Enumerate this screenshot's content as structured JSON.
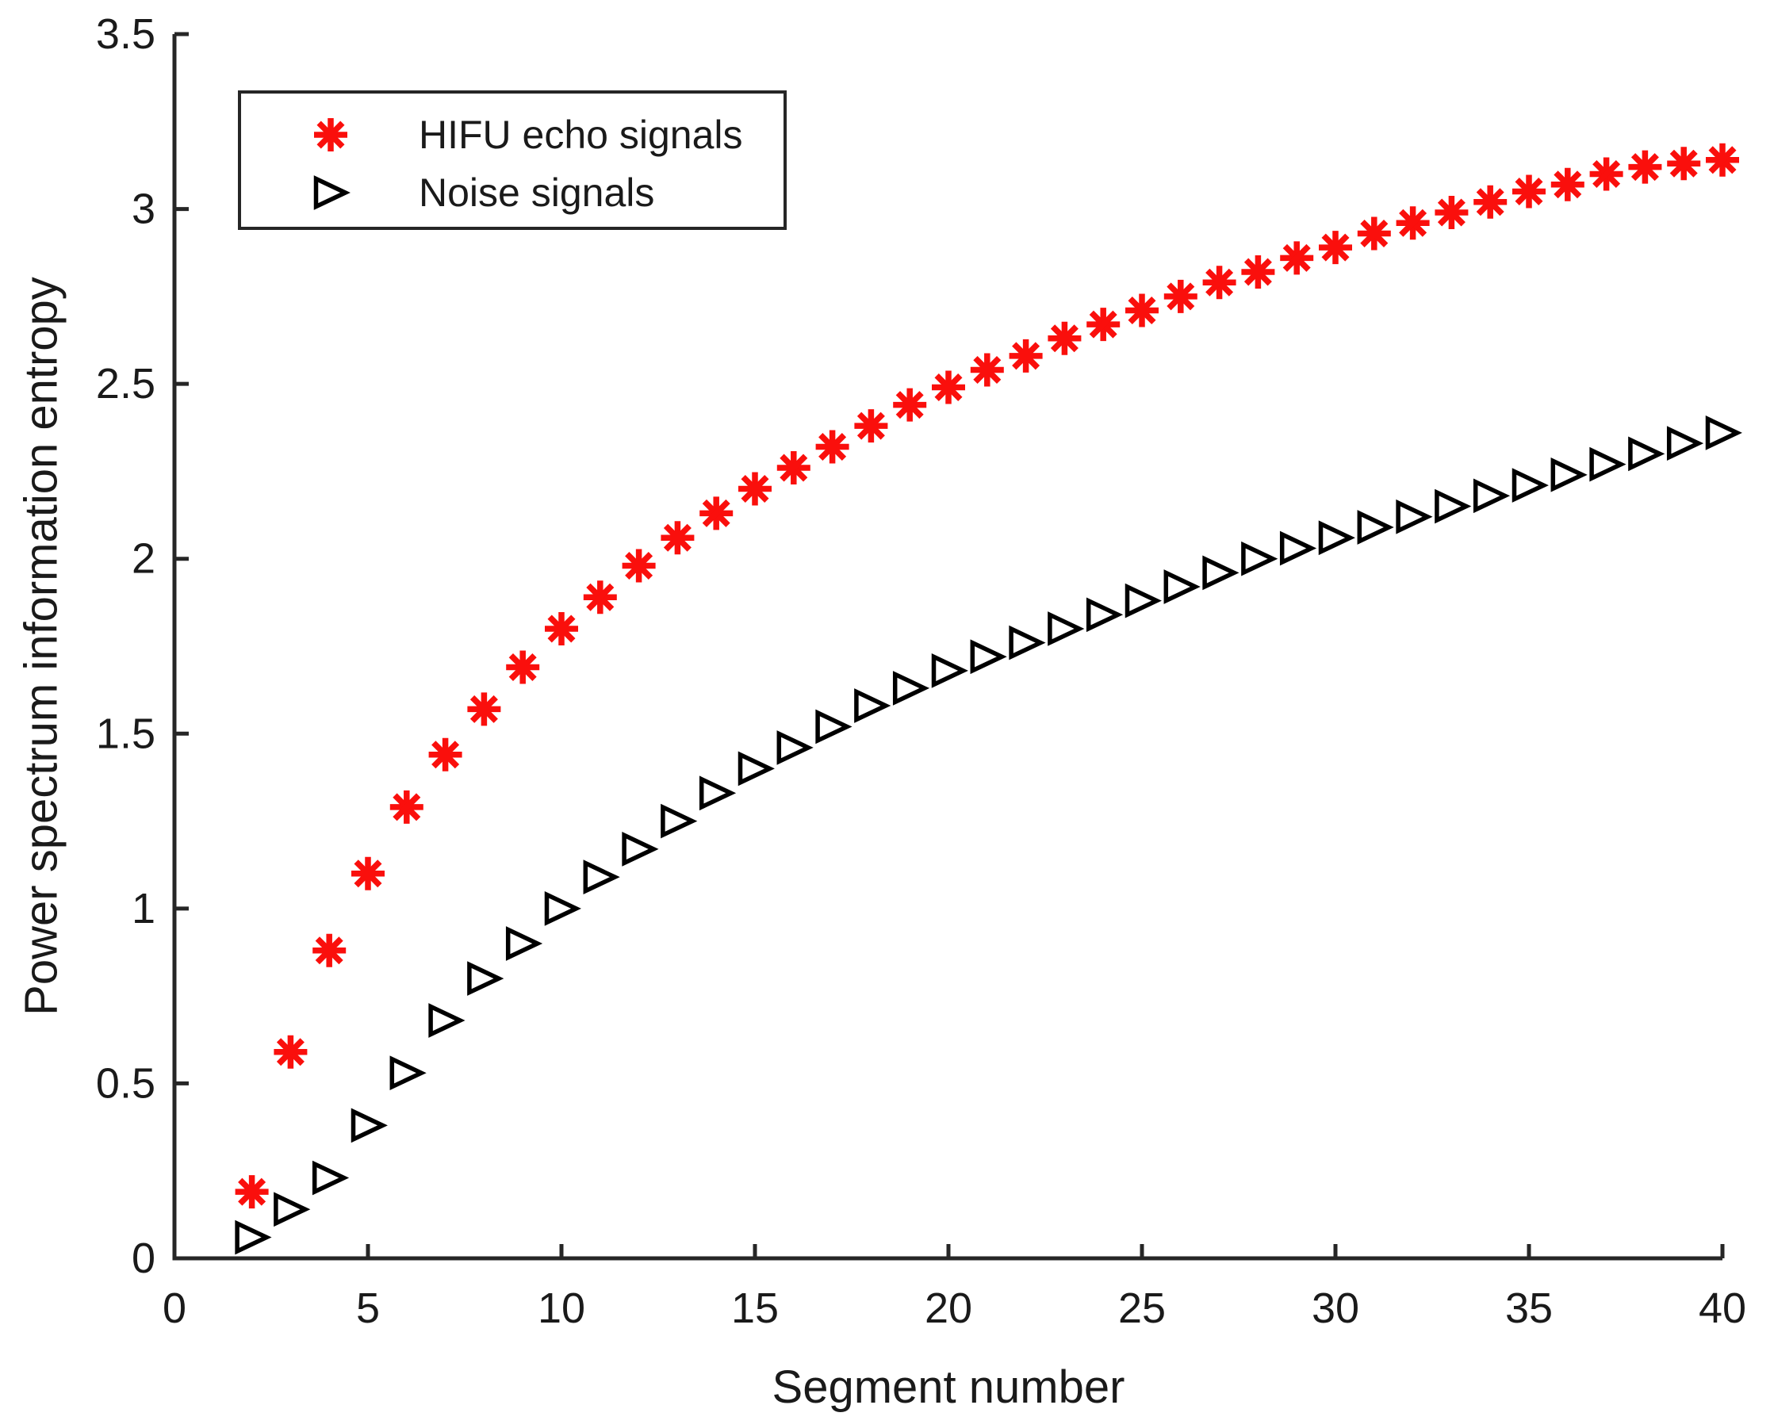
{
  "figure": {
    "background_color": "#ffffff",
    "axis_color": "#262626",
    "text_color": "#1a1a1a"
  },
  "chart_data": {
    "type": "scatter",
    "title": "",
    "xlabel": "Segment number",
    "ylabel": "Power spectrum information entropy",
    "xlim": [
      0,
      40
    ],
    "ylim": [
      0,
      3.5
    ],
    "xtick_values": [
      0,
      5,
      10,
      15,
      20,
      25,
      30,
      35,
      40
    ],
    "xtick_labels": [
      "0",
      "5",
      "10",
      "15",
      "20",
      "25",
      "30",
      "35",
      "40"
    ],
    "ytick_values": [
      0,
      0.5,
      1,
      1.5,
      2,
      2.5,
      3,
      3.5
    ],
    "ytick_labels": [
      "0",
      "0.5",
      "1",
      "1.5",
      "2",
      "2.5",
      "3",
      "3.5"
    ],
    "grid": false,
    "legend_position": "top-left",
    "x": [
      2,
      3,
      4,
      5,
      6,
      7,
      8,
      9,
      10,
      11,
      12,
      13,
      14,
      15,
      16,
      17,
      18,
      19,
      20,
      21,
      22,
      23,
      24,
      25,
      26,
      27,
      28,
      29,
      30,
      31,
      32,
      33,
      34,
      35,
      36,
      37,
      38,
      39,
      40
    ],
    "series": [
      {
        "name": "HIFU echo signals",
        "marker": "asterisk",
        "color": "#fa0f0c",
        "values": [
          0.19,
          0.59,
          0.88,
          1.1,
          1.29,
          1.44,
          1.57,
          1.69,
          1.8,
          1.89,
          1.98,
          2.06,
          2.13,
          2.2,
          2.26,
          2.32,
          2.38,
          2.44,
          2.49,
          2.54,
          2.58,
          2.63,
          2.67,
          2.71,
          2.75,
          2.79,
          2.82,
          2.86,
          2.89,
          2.93,
          2.96,
          2.99,
          3.02,
          3.05,
          3.07,
          3.1,
          3.12,
          3.13,
          3.14
        ]
      },
      {
        "name": "Noise signals",
        "marker": "triangle-right",
        "color": "#000000",
        "values": [
          0.06,
          0.14,
          0.23,
          0.38,
          0.53,
          0.68,
          0.8,
          0.9,
          1.0,
          1.09,
          1.17,
          1.25,
          1.33,
          1.4,
          1.46,
          1.52,
          1.58,
          1.63,
          1.68,
          1.72,
          1.76,
          1.8,
          1.84,
          1.88,
          1.92,
          1.96,
          2.0,
          2.03,
          2.06,
          2.09,
          2.12,
          2.15,
          2.18,
          2.21,
          2.24,
          2.27,
          2.3,
          2.33,
          2.36
        ]
      }
    ]
  },
  "legend": {
    "border_color": "#262626",
    "items": [
      {
        "label": "HIFU echo signals"
      },
      {
        "label": "Noise signals"
      }
    ]
  }
}
